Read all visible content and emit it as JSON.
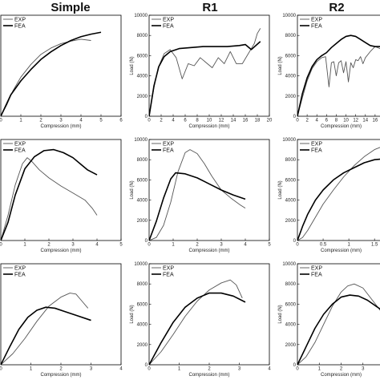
{
  "column_titles": [
    "Simple",
    "R1",
    "R2"
  ],
  "series_names": [
    "EXP",
    "FEA"
  ],
  "series_colors": {
    "EXP": "#555555",
    "FEA": "#000000"
  },
  "chart_data": [
    {
      "id": "simple-row1",
      "type": "line",
      "xlabel": "Compression (mm)",
      "ylabel": "",
      "xlim": [
        0,
        6
      ],
      "ylim": [
        0,
        8000
      ],
      "xticks": [
        0,
        1,
        2,
        3,
        4,
        5,
        6
      ],
      "yticks": [],
      "legend": "top-left",
      "series": [
        {
          "name": "EXP",
          "x": [
            0,
            0.3,
            0.6,
            1,
            1.5,
            2,
            2.5,
            3,
            3.5,
            4,
            4.5
          ],
          "y": [
            0,
            900,
            2000,
            3100,
            4100,
            4900,
            5400,
            5750,
            5950,
            6100,
            6000
          ]
        },
        {
          "name": "FEA",
          "x": [
            0,
            0.5,
            1,
            1.5,
            2,
            2.5,
            3,
            3.5,
            4,
            4.5,
            5
          ],
          "y": [
            0,
            1700,
            2800,
            3700,
            4500,
            5100,
            5600,
            6000,
            6300,
            6500,
            6650
          ]
        }
      ]
    },
    {
      "id": "r1-row1",
      "type": "line",
      "xlabel": "Compression (mm)",
      "ylabel": "Load (N)",
      "xlim": [
        0,
        20
      ],
      "ylim": [
        0,
        10000
      ],
      "xticks": [
        0,
        2,
        4,
        6,
        8,
        10,
        12,
        14,
        16,
        18,
        20
      ],
      "yticks": [
        0,
        2000,
        4000,
        6000,
        8000,
        10000
      ],
      "legend": "top-left",
      "series": [
        {
          "name": "EXP",
          "x": [
            0,
            0.8,
            1.5,
            2.5,
            3.5,
            4.5,
            5.5,
            6.5,
            7.5,
            8.5,
            9.5,
            10.5,
            11.5,
            12.5,
            13.5,
            14.5,
            15.5,
            16.5,
            17.5,
            18,
            18.5
          ],
          "y": [
            0,
            2800,
            4800,
            6200,
            6600,
            5800,
            3700,
            5200,
            5000,
            5800,
            5300,
            4800,
            5800,
            5200,
            6400,
            5200,
            5200,
            6200,
            7200,
            8200,
            8700
          ]
        },
        {
          "name": "FEA",
          "x": [
            0,
            0.8,
            1.6,
            2.5,
            3.5,
            5,
            7,
            9,
            11,
            13,
            15,
            16,
            17,
            18.5
          ],
          "y": [
            0,
            3000,
            4900,
            5900,
            6400,
            6700,
            6800,
            6900,
            6900,
            6900,
            7000,
            7100,
            6600,
            7400
          ]
        }
      ]
    },
    {
      "id": "r2-row1",
      "type": "line",
      "xlabel": "Compression (mm)",
      "ylabel": "Load (N)",
      "xlim": [
        0,
        18
      ],
      "ylim": [
        0,
        10000
      ],
      "xticks": [
        0,
        2,
        4,
        6,
        8,
        10,
        12,
        14,
        16
      ],
      "yticks": [
        0,
        2000,
        4000,
        6000,
        8000,
        10000
      ],
      "legend": "top-left",
      "series": [
        {
          "name": "EXP",
          "x": [
            0,
            1,
            2,
            3,
            4,
            5,
            5.8,
            6.5,
            7,
            7.5,
            8,
            8.5,
            9,
            9.5,
            10,
            10.5,
            11,
            11.5,
            12,
            12.5,
            13,
            13.5,
            14,
            15,
            16,
            17,
            18
          ],
          "y": [
            0,
            1800,
            3500,
            4700,
            5400,
            5800,
            5900,
            2900,
            5300,
            5400,
            4000,
            5300,
            5500,
            4300,
            5400,
            3400,
            5300,
            4800,
            5600,
            5500,
            5900,
            5200,
            5800,
            6400,
            6900,
            6700,
            6500
          ]
        },
        {
          "name": "FEA",
          "x": [
            0,
            1,
            2,
            3,
            4,
            5,
            6,
            7,
            8,
            9,
            10,
            11,
            12,
            13,
            14,
            15,
            16,
            17,
            18
          ],
          "y": [
            0,
            2200,
            3800,
            4900,
            5600,
            6000,
            6300,
            6800,
            7200,
            7600,
            7900,
            8000,
            7900,
            7600,
            7300,
            7000,
            6900,
            6900,
            6900
          ]
        }
      ]
    },
    {
      "id": "simple-row2",
      "type": "line",
      "xlabel": "Compression (mm)",
      "ylabel": "",
      "xlim": [
        0,
        5
      ],
      "ylim": [
        0,
        10000
      ],
      "xticks": [
        0,
        1,
        2,
        3,
        4,
        5
      ],
      "yticks": [],
      "legend": "top-left",
      "series": [
        {
          "name": "EXP",
          "x": [
            0,
            0.3,
            0.6,
            0.9,
            1.1,
            1.3,
            1.6,
            2,
            2.5,
            3,
            3.5,
            3.8,
            4
          ],
          "y": [
            0,
            2500,
            5500,
            7600,
            8200,
            7800,
            7000,
            6200,
            5400,
            4700,
            4000,
            3200,
            2500
          ]
        },
        {
          "name": "FEA",
          "x": [
            0,
            0.3,
            0.6,
            1,
            1.4,
            1.8,
            2.2,
            2.6,
            3,
            3.3,
            3.6,
            4
          ],
          "y": [
            0,
            1800,
            4500,
            7100,
            8300,
            8900,
            9000,
            8700,
            8200,
            7600,
            7000,
            6500
          ]
        }
      ]
    },
    {
      "id": "r1-row2",
      "type": "line",
      "xlabel": "Compression (mm)",
      "ylabel": "Load (N)",
      "xlim": [
        0,
        5
      ],
      "ylim": [
        0,
        10000
      ],
      "xticks": [
        0,
        1,
        2,
        3,
        4,
        5
      ],
      "yticks": [
        0,
        2000,
        4000,
        6000,
        8000,
        10000
      ],
      "legend": "top-left",
      "series": [
        {
          "name": "EXP",
          "x": [
            0,
            0.3,
            0.6,
            0.9,
            1.2,
            1.5,
            1.7,
            2,
            2.3,
            2.6,
            3,
            3.4,
            3.8,
            4
          ],
          "y": [
            0,
            300,
            1500,
            3800,
            6800,
            8700,
            9000,
            8600,
            7600,
            6400,
            5000,
            4200,
            3500,
            3200
          ]
        },
        {
          "name": "FEA",
          "x": [
            0,
            0.3,
            0.6,
            0.9,
            1.1,
            1.5,
            2,
            2.5,
            3,
            3.5,
            4
          ],
          "y": [
            0,
            1900,
            4200,
            6100,
            6700,
            6600,
            6200,
            5600,
            5000,
            4500,
            4100
          ]
        }
      ]
    },
    {
      "id": "r2-row2",
      "type": "line",
      "xlabel": "Compression (mm)",
      "ylabel": "Load (N)",
      "xlim": [
        0,
        1.7
      ],
      "ylim": [
        0,
        10000
      ],
      "xticks": [
        0,
        0.5,
        1,
        1.5
      ],
      "yticks": [
        0,
        2000,
        4000,
        6000,
        8000,
        10000
      ],
      "legend": "top-left",
      "series": [
        {
          "name": "EXP",
          "x": [
            0,
            0.1,
            0.2,
            0.35,
            0.5,
            0.7,
            0.9,
            1.1,
            1.3,
            1.5,
            1.7
          ],
          "y": [
            0,
            300,
            1000,
            2300,
            3600,
            5000,
            6300,
            7400,
            8300,
            9000,
            9400
          ]
        },
        {
          "name": "FEA",
          "x": [
            0,
            0.1,
            0.2,
            0.35,
            0.5,
            0.7,
            0.9,
            1.1,
            1.3,
            1.5,
            1.7
          ],
          "y": [
            0,
            1400,
            2600,
            4000,
            5000,
            6000,
            6700,
            7200,
            7700,
            8000,
            8100
          ]
        }
      ]
    },
    {
      "id": "simple-row3",
      "type": "line",
      "xlabel": "Compression (mm)",
      "ylabel": "",
      "xlim": [
        0,
        4
      ],
      "ylim": [
        0,
        10000
      ],
      "xticks": [
        0,
        1,
        2,
        3,
        4
      ],
      "yticks": [],
      "legend": "top-left",
      "series": [
        {
          "name": "EXP",
          "x": [
            0,
            0.4,
            0.8,
            1.2,
            1.6,
            2,
            2.3,
            2.5,
            2.7,
            2.9
          ],
          "y": [
            0,
            1100,
            2600,
            4300,
            5800,
            6700,
            7100,
            7000,
            6300,
            5600
          ]
        },
        {
          "name": "FEA",
          "x": [
            0,
            0.3,
            0.6,
            0.9,
            1.2,
            1.5,
            1.8,
            2.1,
            2.5,
            3
          ],
          "y": [
            0,
            1800,
            3500,
            4700,
            5400,
            5700,
            5600,
            5300,
            4900,
            4400
          ]
        }
      ]
    },
    {
      "id": "r1-row3",
      "type": "line",
      "xlabel": "Compression (mm)",
      "ylabel": "Load (N)",
      "xlim": [
        0,
        4
      ],
      "ylim": [
        0,
        10000
      ],
      "xticks": [
        0,
        1,
        2,
        3,
        4
      ],
      "yticks": [
        0,
        2000,
        4000,
        6000,
        8000,
        10000
      ],
      "legend": "top-left",
      "series": [
        {
          "name": "EXP",
          "x": [
            0,
            0.4,
            0.8,
            1.2,
            1.6,
            2,
            2.4,
            2.7,
            2.9,
            3.1
          ],
          "y": [
            0,
            1300,
            3000,
            4800,
            6300,
            7400,
            8100,
            8400,
            7900,
            6600
          ]
        },
        {
          "name": "FEA",
          "x": [
            0,
            0.4,
            0.8,
            1.2,
            1.6,
            2,
            2.4,
            2.8,
            3.2
          ],
          "y": [
            0,
            2200,
            4200,
            5700,
            6600,
            7100,
            7100,
            6800,
            6200
          ]
        }
      ]
    },
    {
      "id": "r2-row3",
      "type": "line",
      "xlabel": "Compression (mm)",
      "ylabel": "Load (N)",
      "xlim": [
        0,
        4
      ],
      "ylim": [
        0,
        10000
      ],
      "xticks": [
        0,
        1,
        2,
        3,
        4
      ],
      "yticks": [
        0,
        2000,
        4000,
        6000,
        8000,
        10000
      ],
      "legend": "top-left",
      "series": [
        {
          "name": "EXP",
          "x": [
            0,
            0.4,
            0.8,
            1.2,
            1.6,
            2,
            2.3,
            2.6,
            3,
            3.5,
            4
          ],
          "y": [
            0,
            800,
            2200,
            4000,
            5800,
            7200,
            7800,
            8000,
            7600,
            6200,
            4800
          ]
        },
        {
          "name": "FEA",
          "x": [
            0,
            0.4,
            0.8,
            1.2,
            1.6,
            2,
            2.4,
            2.8,
            3.2,
            3.6,
            4
          ],
          "y": [
            0,
            1800,
            3600,
            5000,
            6000,
            6700,
            6900,
            6800,
            6400,
            5800,
            5200
          ]
        }
      ]
    }
  ]
}
